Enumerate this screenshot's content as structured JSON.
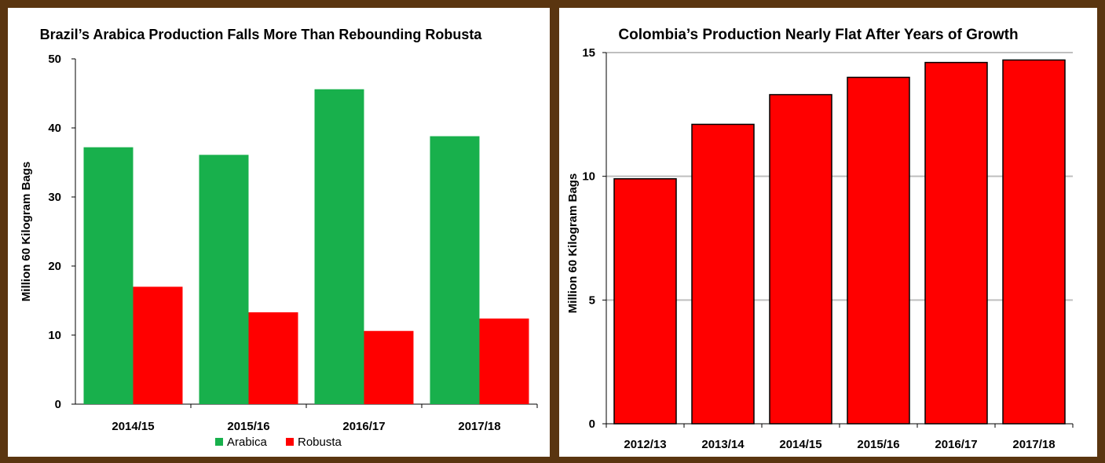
{
  "colors": {
    "arabica": "#18b04c",
    "robusta": "#ff0000",
    "bar_outline": "#000000",
    "grid": "#bfbfbf",
    "frame": "#5a3510"
  },
  "chart_data": [
    {
      "type": "bar",
      "title": "Brazil’s Arabica Production Falls More Than Rebounding Robusta",
      "xlabel": "",
      "ylabel": "Million 60 Kilogram Bags",
      "categories": [
        "2014/15",
        "2015/16",
        "2016/17",
        "2017/18"
      ],
      "series": [
        {
          "name": "Arabica",
          "values": [
            37.2,
            36.1,
            45.6,
            38.8
          ]
        },
        {
          "name": "Robusta",
          "values": [
            17.0,
            13.3,
            10.6,
            12.4
          ]
        }
      ],
      "ylim": [
        0,
        50
      ],
      "yticks": [
        "0",
        "10",
        "20",
        "30",
        "40",
        "50"
      ],
      "grid": false,
      "legend": "bottom"
    },
    {
      "type": "bar",
      "title": "Colombia’s Production Nearly Flat After Years of Growth",
      "xlabel": "",
      "ylabel": "Million 60 Kilogram Bags",
      "categories": [
        "2012/13",
        "2013/14",
        "2014/15",
        "2015/16",
        "2016/17",
        "2017/18"
      ],
      "series": [
        {
          "values": [
            9.9,
            12.1,
            13.3,
            14.0,
            14.6,
            14.7
          ]
        }
      ],
      "ylim": [
        0,
        15
      ],
      "yticks": [
        "0",
        "5",
        "10",
        "15"
      ],
      "grid": true,
      "legend": "none"
    }
  ]
}
